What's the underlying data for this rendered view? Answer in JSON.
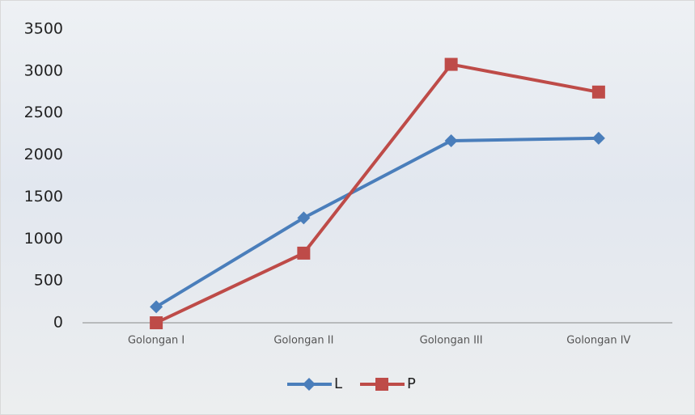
{
  "chart_data": {
    "type": "line",
    "categories": [
      "Golongan I",
      "Golongan II",
      "Golongan III",
      "Golongan IV"
    ],
    "series": [
      {
        "name": "L",
        "color": "#4a7ebb",
        "marker": "diamond",
        "values": [
          190,
          1250,
          2170,
          2200
        ]
      },
      {
        "name": "P",
        "color": "#be4b48",
        "marker": "square",
        "values": [
          0,
          830,
          3080,
          2750
        ]
      }
    ],
    "ylim": [
      0,
      3500
    ],
    "yticks": [
      0,
      500,
      1000,
      1500,
      2000,
      2500,
      3000,
      3500
    ],
    "grid": false,
    "legend": "bottom"
  }
}
